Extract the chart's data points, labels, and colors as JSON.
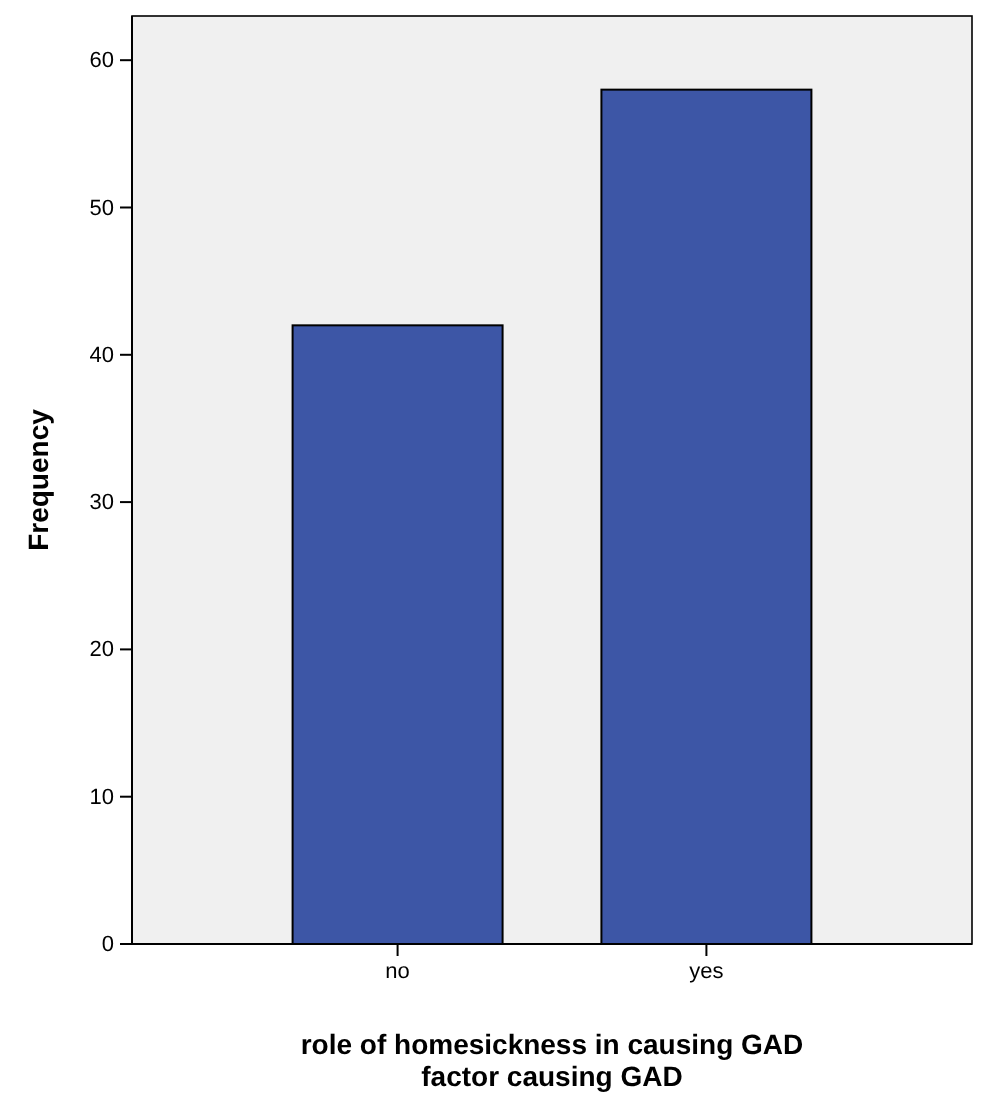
{
  "chart_data": {
    "type": "bar",
    "categories": [
      "no",
      "yes"
    ],
    "values": [
      42,
      58
    ],
    "color": "#3d56a6",
    "ylim": [
      0,
      63
    ],
    "yticks": [
      0,
      10,
      20,
      30,
      40,
      50,
      60
    ],
    "xlabel": "role of homesickness in causing GAD\nfactor causing GAD",
    "ylabel": "Frequency",
    "grid": false
  }
}
